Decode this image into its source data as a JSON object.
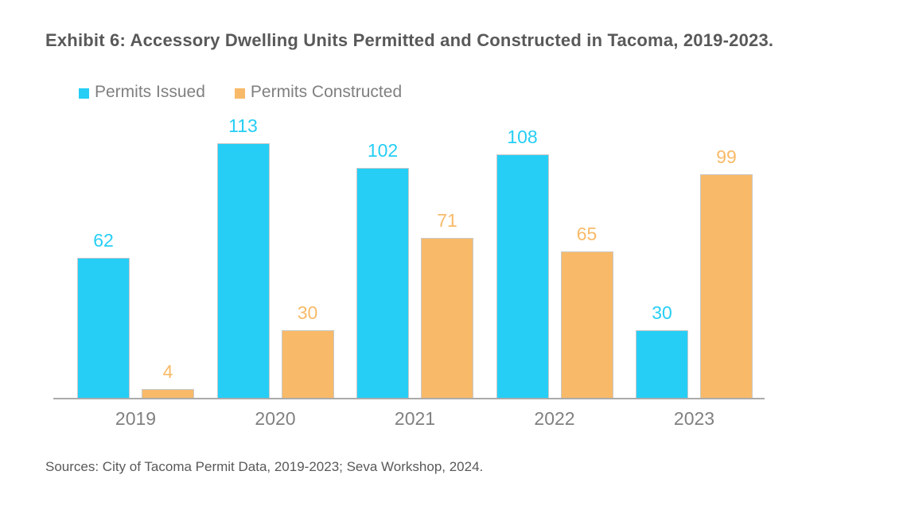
{
  "title": "Exhibit 6: Accessory Dwelling Units Permitted and Constructed in Tacoma, 2019-2023.",
  "source_note": "Sources: City of Tacoma Permit Data, 2019-2023; Seva Workshop, 2024.",
  "legend": [
    {
      "label": "Permits Issued",
      "color": "#26cef5"
    },
    {
      "label": "Permits Constructed",
      "color": "#f8ba69"
    }
  ],
  "colors": {
    "background": "#ffffff",
    "title_text": "#595959",
    "legend_text": "#808080",
    "tick_text": "#808080",
    "axis_line": "#ababab",
    "permits_issued": "#26cef5",
    "permits_constructed": "#f8ba69"
  },
  "chart_data": {
    "type": "bar",
    "title": "Exhibit 6: Accessory Dwelling Units Permitted and Constructed in Tacoma, 2019-2023.",
    "categories": [
      "2019",
      "2020",
      "2021",
      "2022",
      "2023"
    ],
    "series": [
      {
        "name": "Permits Issued",
        "color": "#26cef5",
        "values": [
          62,
          113,
          102,
          108,
          30
        ]
      },
      {
        "name": "Permits Constructed",
        "color": "#f8ba69",
        "values": [
          4,
          30,
          71,
          65,
          99
        ]
      }
    ],
    "xlabel": "",
    "ylabel": "",
    "ylim": [
      0,
      120
    ],
    "grid": false,
    "y_axis_visible": false,
    "data_labels": true,
    "legend_position": "top-left"
  }
}
